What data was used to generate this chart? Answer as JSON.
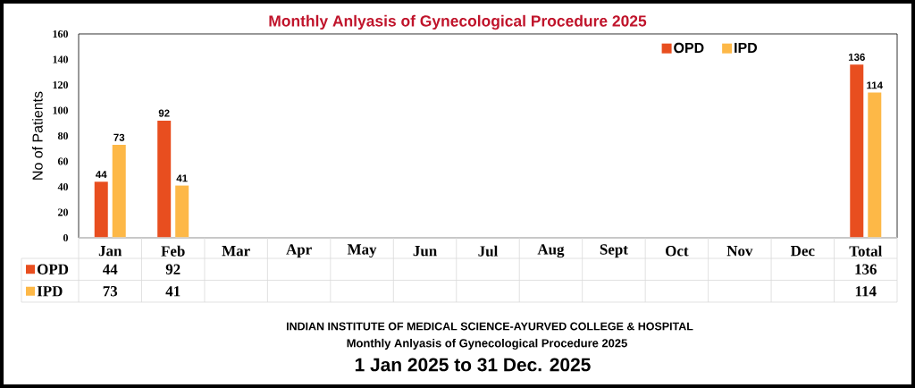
{
  "chart_data": {
    "type": "bar",
    "title": "Monthly Anlyasis of Gynecological Procedure  2025",
    "ylabel": "No of Patients",
    "categories": [
      "Jan",
      "Feb",
      "Mar",
      "Apr",
      "May",
      "Jun",
      "Jul",
      "Aug",
      "Sept",
      "Oct",
      "Nov",
      "Dec",
      "Total"
    ],
    "series": [
      {
        "name": "OPD",
        "color": "#e84e1f",
        "values": [
          44,
          92,
          null,
          null,
          null,
          null,
          null,
          null,
          null,
          null,
          null,
          null,
          136
        ]
      },
      {
        "name": "IPD",
        "color": "#fdb847",
        "values": [
          73,
          41,
          null,
          null,
          null,
          null,
          null,
          null,
          null,
          null,
          null,
          null,
          114
        ]
      }
    ],
    "ylim": [
      0,
      160
    ],
    "yticks": [
      0,
      20,
      40,
      60,
      80,
      100,
      120,
      140,
      160
    ],
    "legend": "top right",
    "data_labels": true,
    "annotations": [
      {
        "text": "44",
        "x": "Jan",
        "y": 44
      },
      {
        "text": "73",
        "x": "Jan",
        "y": 73
      },
      {
        "text": "92",
        "x": "Feb",
        "y": 92
      },
      {
        "text": "41",
        "x": "Feb",
        "y": 41
      },
      {
        "text": "136",
        "x": "Total",
        "y": 136
      },
      {
        "text": "114",
        "x": "Total",
        "y": 114
      },
      "INDIAN INSTITUTE OF MEDICAL SCIENCE-AYURVED COLLEGE & HOSPITAL",
      "Monthly Anlyasis of Gynecological Procedure 2025",
      "1 Jan 2025 to 31 Dec. 2025"
    ]
  }
}
